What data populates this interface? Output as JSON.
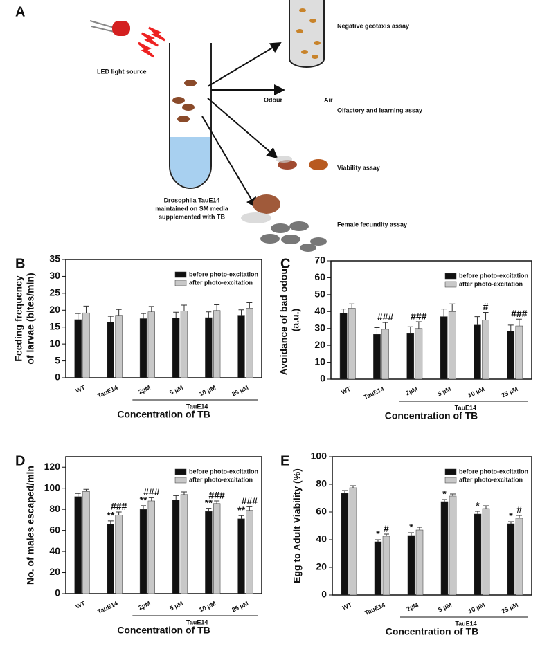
{
  "panel_a": {
    "panel": "A",
    "led_label": "LED light source",
    "tube_label": [
      "Drosophila TauE14",
      "maintained on SM media",
      "supplemented with TB"
    ],
    "assays": {
      "geotaxis": "Negative geotaxis assay",
      "odour": "Odour",
      "air": "Air",
      "olfactory": "Olfactory and learning assay",
      "viability": "Viability assay",
      "fecundity": "Female fecundity assay"
    }
  },
  "chart_data": [
    {
      "panel": "B",
      "type": "bar",
      "ylabel": [
        "Feeding frequency",
        "of larvae (bites/min)"
      ],
      "xlabel": "Concentration of TB",
      "group_label": "TauE14",
      "categories": [
        "WT",
        "TauE14",
        "2µM",
        "5 µM",
        "10 µM",
        "25 µM"
      ],
      "ylim": [
        0,
        35
      ],
      "yticks": [
        0,
        5,
        10,
        15,
        20,
        25,
        30,
        35
      ],
      "series": [
        {
          "name": "before photo-excitation",
          "color": "#111111",
          "values": [
            17.2,
            16.5,
            17.5,
            17.7,
            17.8,
            18.5
          ],
          "errors": [
            1.8,
            1.7,
            1.5,
            1.7,
            1.7,
            1.6
          ]
        },
        {
          "name": "after photo-excitation",
          "color": "#c8c8c8",
          "values": [
            19.2,
            18.5,
            19.5,
            19.7,
            19.9,
            20.6
          ],
          "errors": [
            2,
            1.7,
            1.6,
            1.8,
            1.7,
            1.6
          ]
        }
      ]
    },
    {
      "panel": "C",
      "type": "bar",
      "ylabel": [
        "Avoidance of bad odour",
        "(a.u.)"
      ],
      "xlabel": "Concentration of TB",
      "group_label": "TauE14",
      "categories": [
        "WT",
        "TauE14",
        "2µM",
        "5 µM",
        "10 µM",
        "25 µM"
      ],
      "ylim": [
        0,
        70
      ],
      "yticks": [
        0,
        10,
        20,
        30,
        40,
        50,
        60,
        70
      ],
      "series": [
        {
          "name": "before photo-excitation",
          "color": "#111111",
          "values": [
            39,
            26.5,
            27,
            37,
            32,
            28.5
          ],
          "errors": [
            2.5,
            4,
            4,
            4.5,
            5,
            3.5
          ]
        },
        {
          "name": "after photo-excitation",
          "color": "#c8c8c8",
          "values": [
            42,
            29.5,
            30,
            40,
            35,
            31.5
          ],
          "errors": [
            2.5,
            4,
            4,
            4.5,
            4.5,
            4
          ],
          "annotations": [
            null,
            "###",
            "###",
            null,
            "#",
            "###"
          ]
        }
      ]
    },
    {
      "panel": "D",
      "type": "bar",
      "ylabel": [
        "No. of males escaped/min"
      ],
      "xlabel": "Concentration of TB",
      "group_label": "TauE14",
      "categories": [
        "WT",
        "TauE14",
        "2µM",
        "5 µM",
        "10 µM",
        "25 µM"
      ],
      "ylim": [
        0,
        130
      ],
      "yticks": [
        0,
        20,
        40,
        60,
        80,
        100,
        120
      ],
      "series": [
        {
          "name": "before photo-excitation",
          "color": "#111111",
          "values": [
            92,
            66,
            80,
            89,
            78,
            71
          ],
          "errors": [
            3,
            3,
            3.5,
            4,
            3,
            3
          ],
          "annotations": [
            null,
            "**",
            "**",
            null,
            "**",
            "**"
          ]
        },
        {
          "name": "after photo-excitation",
          "color": "#c8c8c8",
          "values": [
            97,
            74.5,
            88,
            94,
            85.5,
            79
          ],
          "errors": [
            2,
            3,
            3,
            2.5,
            2.5,
            3.5
          ],
          "annotations": [
            null,
            "###",
            "###",
            null,
            "###",
            "###"
          ]
        }
      ]
    },
    {
      "panel": "E",
      "type": "bar",
      "ylabel": [
        "Egg to Adult Viability (%)"
      ],
      "xlabel": "Concentration of TB",
      "group_label": "TauE14",
      "categories": [
        "WT",
        "TauE14",
        "2µM",
        "5 µM",
        "10 µM",
        "25 µM"
      ],
      "ylim": [
        0,
        100
      ],
      "yticks": [
        0,
        20,
        40,
        60,
        80,
        100
      ],
      "series": [
        {
          "name": "before photo-excitation",
          "color": "#111111",
          "values": [
            73.5,
            38.5,
            43,
            67.5,
            58.5,
            51.5
          ],
          "errors": [
            2,
            1.5,
            2,
            1.5,
            2,
            1.5
          ],
          "annotations": [
            null,
            "*",
            "*",
            "*",
            "*",
            "*"
          ]
        },
        {
          "name": "after photo-excitation",
          "color": "#c8c8c8",
          "values": [
            77.5,
            42.5,
            47,
            71.5,
            62.5,
            55.5
          ],
          "errors": [
            1.5,
            1.5,
            2,
            1.5,
            2,
            2
          ],
          "annotations": [
            null,
            "#",
            null,
            null,
            null,
            "#"
          ]
        }
      ]
    }
  ]
}
